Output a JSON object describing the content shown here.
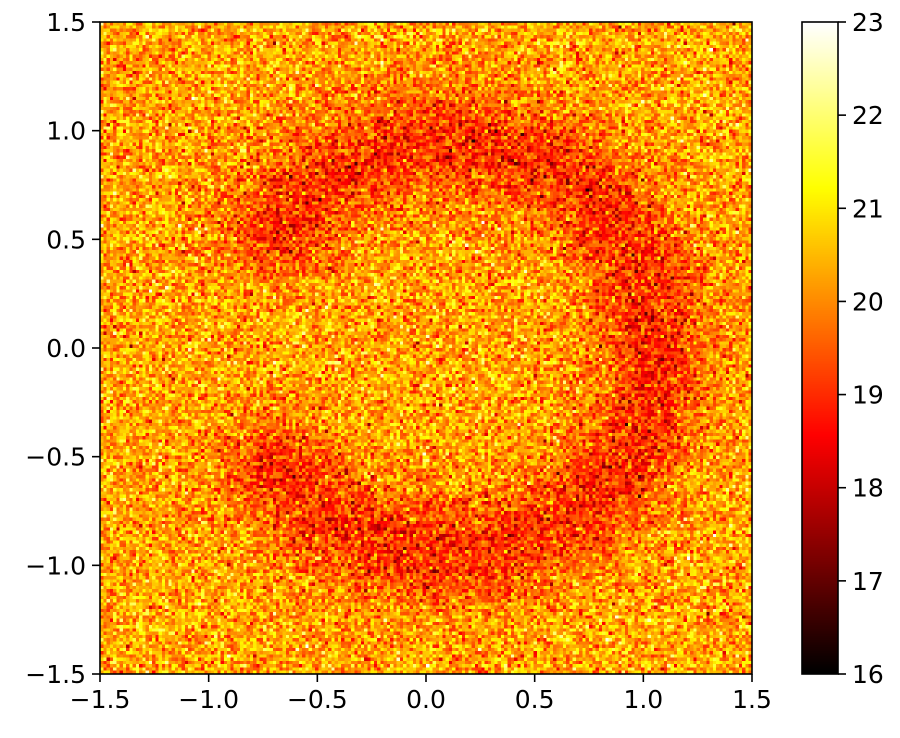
{
  "chart_data": {
    "type": "heatmap",
    "title": "",
    "xlabel": "",
    "ylabel": "",
    "xlim": [
      -1.5,
      1.5
    ],
    "ylim": [
      -1.5,
      1.5
    ],
    "x_ticks": [
      -1.5,
      -1.0,
      -0.5,
      0.0,
      0.5,
      1.0,
      1.5
    ],
    "y_ticks": [
      -1.5,
      -1.0,
      -0.5,
      0.0,
      0.5,
      1.0,
      1.5
    ],
    "x_tick_labels": [
      "−1.5",
      "−1.0",
      "−0.5",
      "0.0",
      "0.5",
      "1.0",
      "1.5"
    ],
    "y_tick_labels": [
      "−1.5",
      "−1.0",
      "−0.5",
      "0.0",
      "0.5",
      "1.0",
      "1.5"
    ],
    "grid": false,
    "colormap": "hot",
    "grid_resolution": [
      200,
      200
    ],
    "colorbar": {
      "range": [
        16,
        23
      ],
      "ticks": [
        16,
        17,
        18,
        19,
        20,
        21,
        22,
        23
      ],
      "tick_labels": [
        "16",
        "17",
        "18",
        "19",
        "20",
        "21",
        "22",
        "23"
      ],
      "placement": "right"
    },
    "value_field": {
      "background_mean": 20.3,
      "ring_mean": 19.0,
      "ring_center": [
        0.1,
        0.0
      ],
      "ring_radius": 0.95,
      "ring_width": 0.25,
      "ring_gap_angle_deg": [
        150,
        210
      ],
      "noise_std": 0.75
    }
  }
}
